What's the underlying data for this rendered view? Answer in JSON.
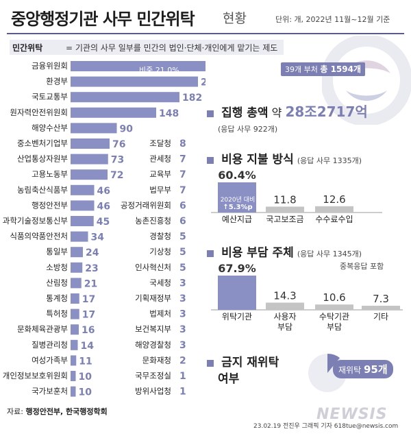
{
  "header": {
    "title": "중앙행정기관 사무 민간위탁",
    "title_suffix": "현황",
    "unit": "단위: 개, 2022년 11월~12월 기준"
  },
  "definition": {
    "label": "민간위탁",
    "text": "= 기관의 사무 일부를 민간의 법인·단체·개인에게 맡기는 제도"
  },
  "colors": {
    "accent": "#7b7fb3",
    "bar": "#8a8fc4",
    "grey": "#c4c4c4",
    "text": "#222222"
  },
  "chart_data": [
    {
      "type": "bar",
      "orientation": "horizontal",
      "title": "",
      "categories": [
        "금융위원회",
        "환경부",
        "국토교통부",
        "원자력안전위원회",
        "해양수산부",
        "중소벤처기업부",
        "산업통상자원부",
        "고용노동부",
        "농림축산식품부",
        "행정안전부",
        "과학기술정보통신부",
        "식품의약품안전처",
        "통일부",
        "소방청",
        "산림청",
        "통계청",
        "특허청",
        "문화체육관광부",
        "질병관리청",
        "여성가족부",
        "개인정보보호위원회",
        "국가보훈처"
      ],
      "values": [
        334,
        209,
        182,
        148,
        90,
        76,
        73,
        72,
        46,
        46,
        45,
        34,
        24,
        23,
        21,
        17,
        17,
        16,
        14,
        11,
        10,
        10
      ],
      "value_labels": [
        "334개",
        "209",
        "182",
        "148",
        "90",
        "76",
        "73",
        "72",
        "46",
        "46",
        "45",
        "34",
        "24",
        "23",
        "21",
        "17",
        "17",
        "16",
        "14",
        "11",
        "10",
        "10"
      ],
      "annotations": {
        "share": "비중 21.0%",
        "total_prefix": "39개 부처",
        "total": "총 1594개"
      }
    },
    {
      "type": "bar",
      "orientation": "horizontal",
      "title": "",
      "categories": [
        "조달청",
        "관세청",
        "교육부",
        "법무부",
        "공정거래위원회",
        "농촌진흥청",
        "경찰청",
        "기상청",
        "인사혁신처",
        "국세청",
        "기획재정부",
        "법제처",
        "보건복지부",
        "해양경찰청",
        "문화재청",
        "국무조정실",
        "방위사업청"
      ],
      "values": [
        8,
        7,
        7,
        7,
        6,
        6,
        5,
        5,
        5,
        3,
        3,
        3,
        3,
        3,
        2,
        1,
        1
      ],
      "value_labels": [
        "8",
        "7",
        "7",
        "7",
        "6",
        "6",
        "5",
        "5",
        "5",
        "3",
        "3",
        "3",
        "3",
        "3",
        "2",
        "1",
        "1"
      ]
    },
    {
      "type": "bar",
      "title": "비용 지불 방식",
      "subtitle": "(응답 사무 1335개)",
      "categories": [
        "예산지급",
        "국고보조금",
        "수수료수입"
      ],
      "values": [
        60.4,
        11.8,
        12.6
      ],
      "value_labels": [
        "60.4%",
        "11.8",
        "12.6"
      ],
      "annotations": {
        "change_label": "2020년 대비",
        "change_value": "↑5.3%p"
      }
    },
    {
      "type": "bar",
      "title": "비용 부담 주체",
      "subtitle": "(응답 사무 1345개)",
      "note": "중복응답 포함",
      "categories": [
        "위탁기관",
        "사용자\n부담",
        "수탁기관\n부담",
        "기타"
      ],
      "values": [
        67.9,
        14.3,
        10.6,
        7.3
      ],
      "value_labels": [
        "67.9%",
        "14.3",
        "10.6",
        "7.3"
      ]
    },
    {
      "type": "pie",
      "title": "금지 재위탁 여부",
      "slices": [
        {
          "label": "재위탁",
          "value": 95,
          "display": "95개"
        }
      ]
    }
  ],
  "execution": {
    "title": "집행 총액",
    "approx": "약",
    "amount": "28조2717억",
    "sub": "(응답 사무 922개)"
  },
  "reentrust": {
    "title_line1": "금지 재위탁",
    "title_line2": "여부",
    "label": "재위탁",
    "value": "95개"
  },
  "footer": {
    "source_label": "자료:",
    "source": "행정안전부, 한국행정학회",
    "credit": "23.02.19 전진우 그래픽 기자 618tue@newsis.com",
    "brand": "NEWSIS"
  }
}
